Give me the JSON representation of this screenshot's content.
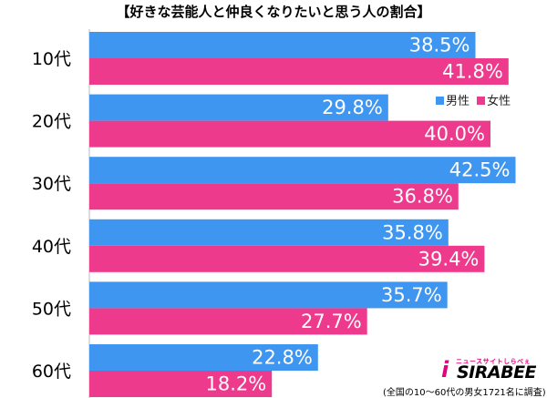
{
  "title": "【好きな芸能人と仲良くなりたいと思う人の割合】",
  "legend": {
    "male": "男性",
    "female": "女性"
  },
  "logo": {
    "tagline": "ニュースサイトしらべぇ",
    "text": "SIRABEE"
  },
  "footnote": "(全国の10〜60代の男女1721名に調査)",
  "colors": {
    "male": "#3e96f0",
    "female": "#ee3a8c"
  },
  "chart_data": {
    "type": "bar",
    "orientation": "horizontal",
    "title": "【好きな芸能人と仲良くなりたいと思う人の割合】",
    "categories": [
      "10代",
      "20代",
      "30代",
      "40代",
      "50代",
      "60代"
    ],
    "series": [
      {
        "name": "男性",
        "values": [
          38.5,
          29.8,
          42.5,
          35.8,
          35.7,
          22.8
        ],
        "labels": [
          "38.5%",
          "29.8%",
          "42.5%",
          "35.8%",
          "35.7%",
          "22.8%"
        ]
      },
      {
        "name": "女性",
        "values": [
          41.8,
          40.0,
          36.8,
          39.4,
          27.7,
          18.2
        ],
        "labels": [
          "41.8%",
          "40.0%",
          "36.8%",
          "39.4%",
          "27.7%",
          "18.2%"
        ]
      }
    ],
    "xlim": [
      0,
      44
    ],
    "grid": false,
    "legend_position": "top-right"
  }
}
